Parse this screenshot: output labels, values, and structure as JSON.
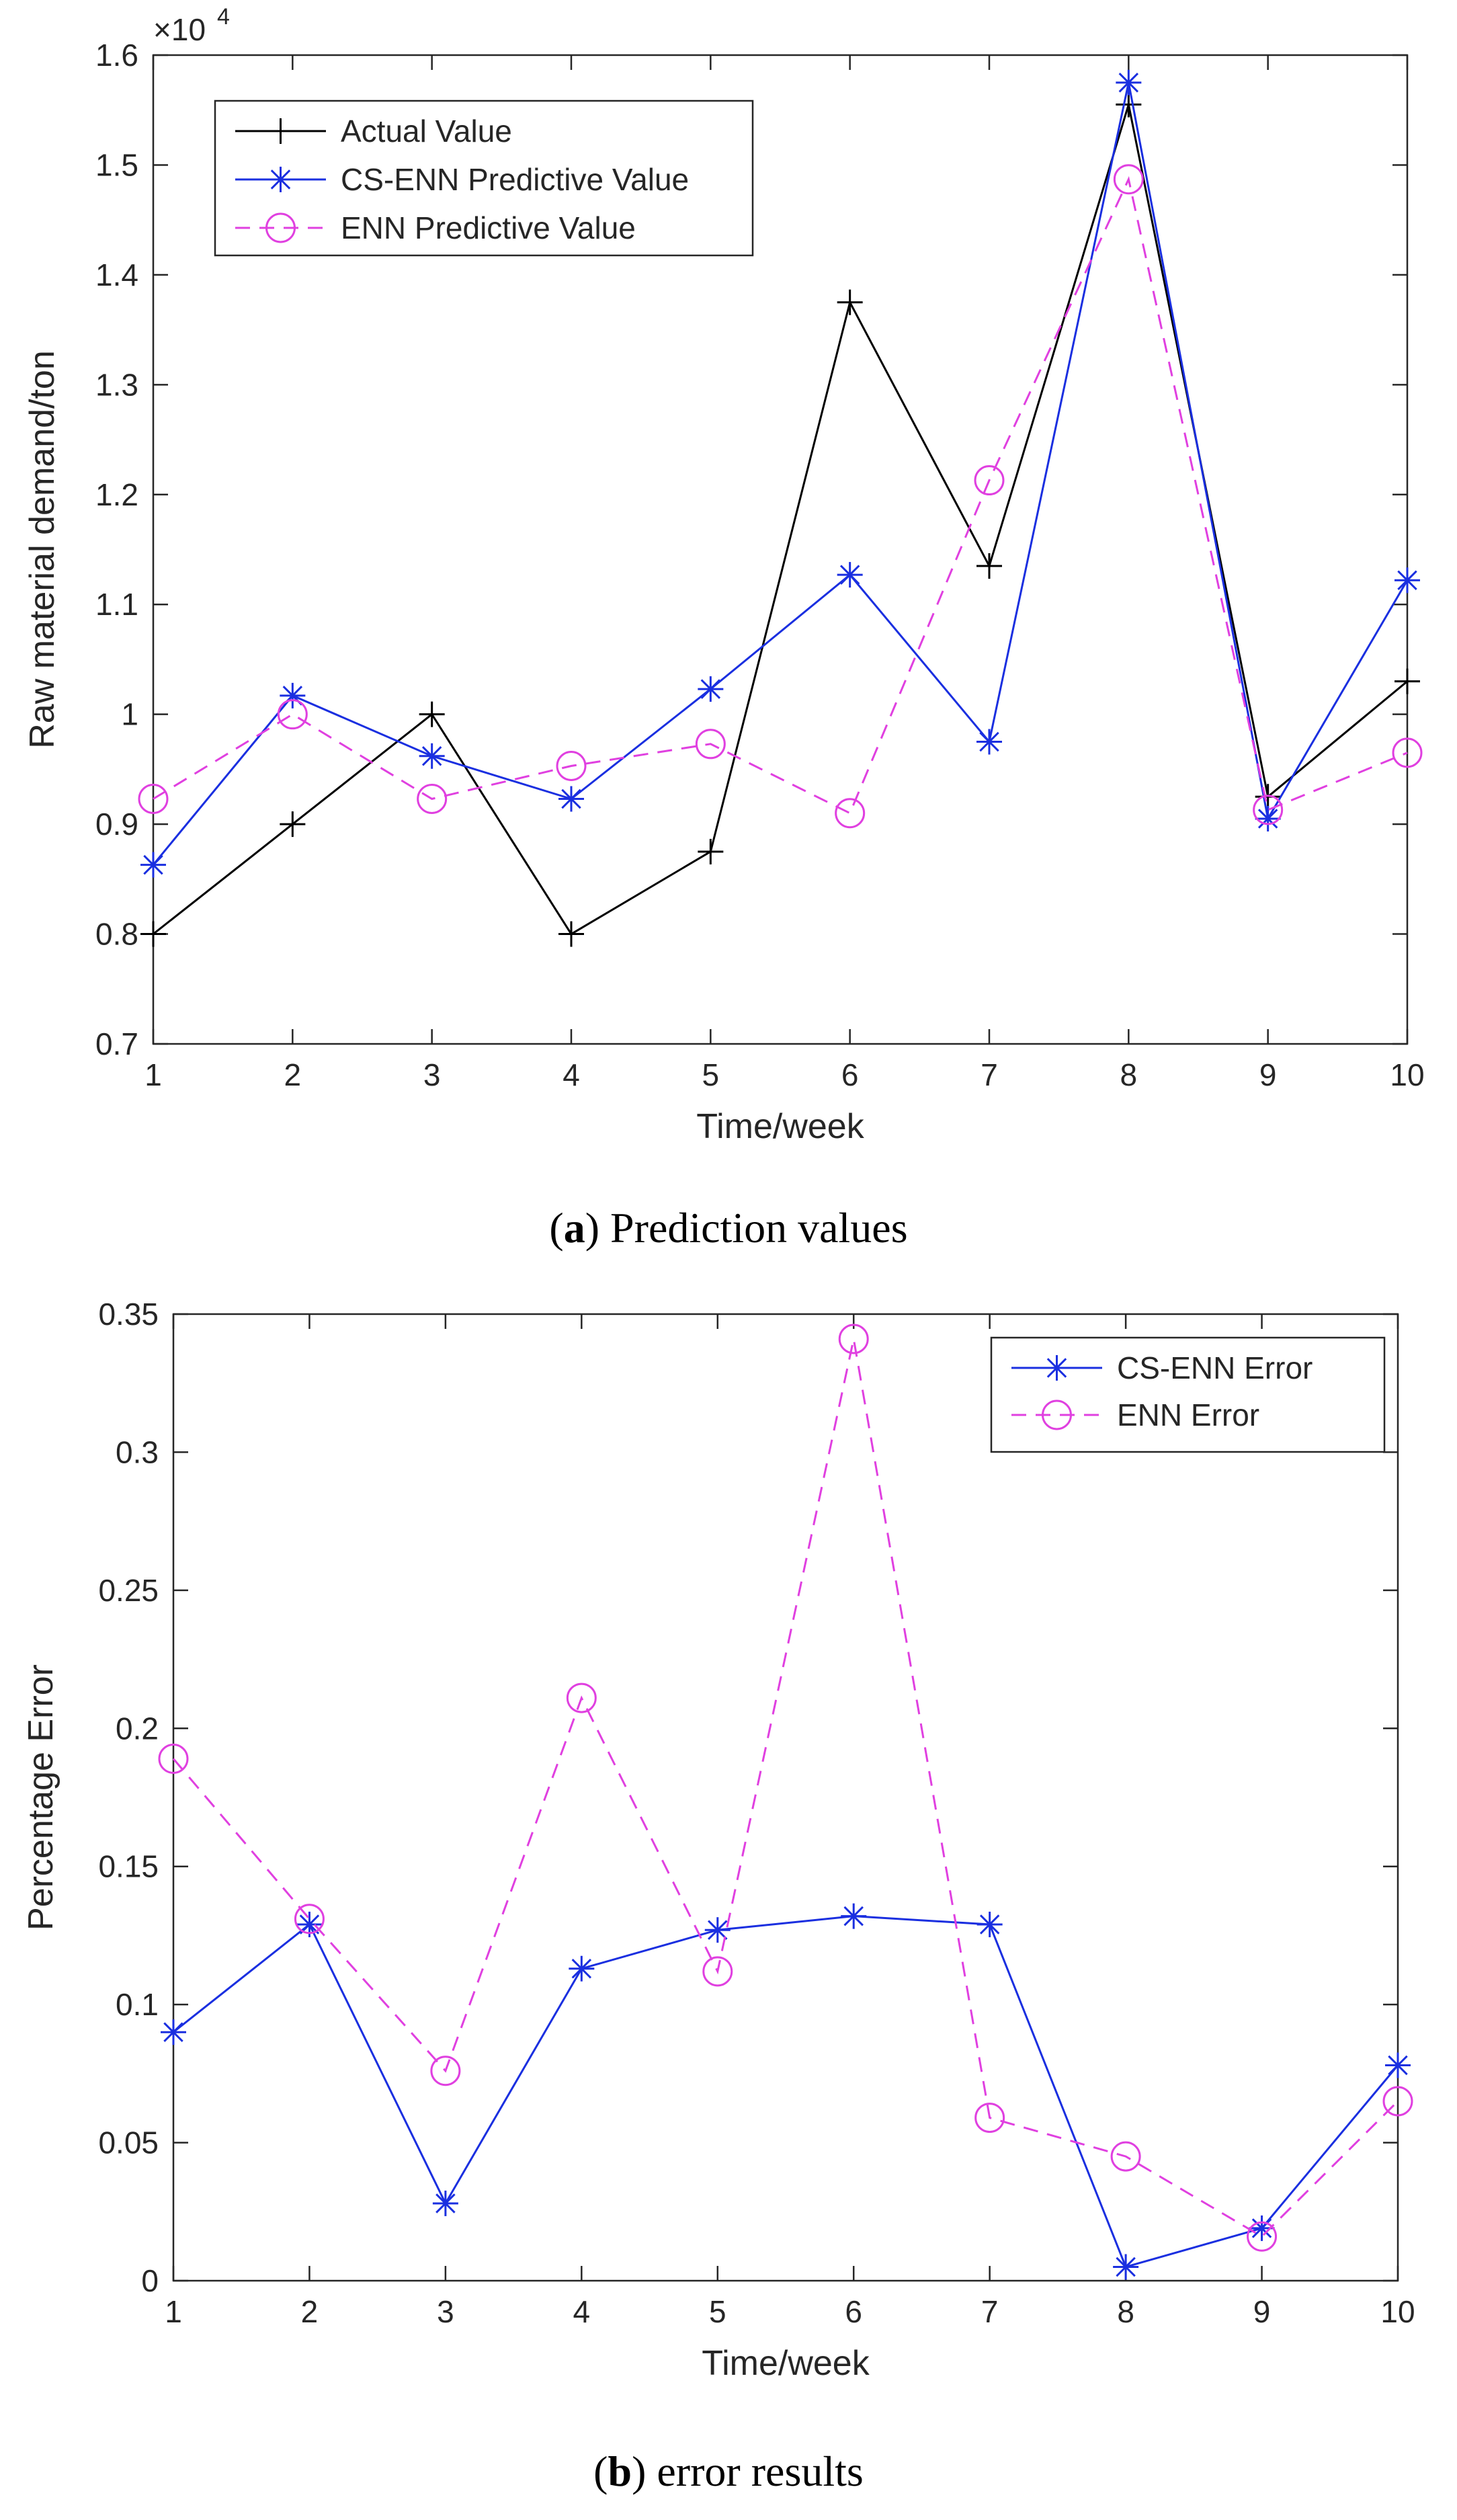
{
  "chart_data": [
    {
      "type": "line",
      "caption_letter": "a",
      "caption_text": ") Prediction values",
      "caption_open": "(",
      "xlabel": "Time/week",
      "ylabel": "Raw material demand/ton",
      "y_exponent_label": "×10",
      "y_exponent_power": "4",
      "x": [
        1,
        2,
        3,
        4,
        5,
        6,
        7,
        8,
        9,
        10
      ],
      "xlim": [
        1,
        10
      ],
      "ylim": [
        0.7,
        1.6
      ],
      "yticks": [
        "0.7",
        "0.8",
        "0.9",
        "1",
        "1.1",
        "1.2",
        "1.3",
        "1.4",
        "1.5",
        "1.6"
      ],
      "xticks": [
        "1",
        "2",
        "3",
        "4",
        "5",
        "6",
        "7",
        "8",
        "9",
        "10"
      ],
      "grid": false,
      "legend_position": "top-left",
      "series": [
        {
          "name": "Actual Value",
          "color": "#000000",
          "marker": "plus",
          "dash": false,
          "values": [
            0.8,
            0.9,
            1.0,
            0.8,
            0.875,
            1.375,
            1.135,
            1.555,
            0.925,
            1.03
          ]
        },
        {
          "name": "CS-ENN Predictive Value",
          "color": "#1a2fe0",
          "marker": "asterisk",
          "dash": false,
          "values": [
            0.863,
            1.017,
            0.962,
            0.923,
            1.023,
            1.127,
            0.975,
            1.575,
            0.905,
            1.122
          ]
        },
        {
          "name": "ENN Predictive Value",
          "color": "#e040e0",
          "marker": "circle",
          "dash": true,
          "values": [
            0.923,
            1.0,
            0.923,
            0.953,
            0.973,
            0.91,
            1.213,
            1.487,
            0.913,
            0.965
          ]
        }
      ]
    },
    {
      "type": "line",
      "caption_letter": "b",
      "caption_text": ") error results",
      "caption_open": "(",
      "xlabel": "Time/week",
      "ylabel": "Percentage Error",
      "x": [
        1,
        2,
        3,
        4,
        5,
        6,
        7,
        8,
        9,
        10
      ],
      "xlim": [
        1,
        10
      ],
      "ylim": [
        0,
        0.35
      ],
      "yticks": [
        "0",
        "0.05",
        "0.1",
        "0.15",
        "0.2",
        "0.25",
        "0.3",
        "0.35"
      ],
      "xticks": [
        "1",
        "2",
        "3",
        "4",
        "5",
        "6",
        "7",
        "8",
        "9",
        "10"
      ],
      "grid": false,
      "legend_position": "top-right",
      "series": [
        {
          "name": "CS-ENN Error",
          "color": "#1a2fe0",
          "marker": "asterisk",
          "dash": false,
          "values": [
            0.09,
            0.129,
            0.028,
            0.113,
            0.127,
            0.132,
            0.129,
            0.005,
            0.019,
            0.078
          ]
        },
        {
          "name": "ENN Error",
          "color": "#e040e0",
          "marker": "circle",
          "dash": true,
          "values": [
            0.189,
            0.131,
            0.076,
            0.211,
            0.112,
            0.341,
            0.059,
            0.045,
            0.016,
            0.065
          ]
        }
      ]
    }
  ]
}
